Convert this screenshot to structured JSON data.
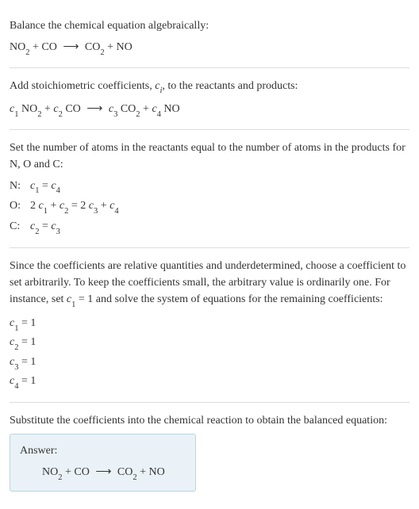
{
  "section1": {
    "title": "Balance the chemical equation algebraically:",
    "eq_r1": "NO",
    "eq_r1_sub": "2",
    "eq_plus1": " + ",
    "eq_r2": "CO",
    "eq_arrow": "⟶",
    "eq_p1": "CO",
    "eq_p1_sub": "2",
    "eq_plus2": " + ",
    "eq_p2": "NO"
  },
  "section2": {
    "title_a": "Add stoichiometric coefficients, ",
    "title_ci": "c",
    "title_ci_sub": "i",
    "title_b": ", to the reactants and products:",
    "c1": "c",
    "c1_sub": "1",
    "r1": " NO",
    "r1_sub": "2",
    "plus1": " + ",
    "c2": "c",
    "c2_sub": "2",
    "r2": " CO",
    "arrow": "⟶",
    "c3": "c",
    "c3_sub": "3",
    "p1": " CO",
    "p1_sub": "2",
    "plus2": " + ",
    "c4": "c",
    "c4_sub": "4",
    "p2": " NO"
  },
  "section3": {
    "title": "Set the number of atoms in the reactants equal to the number of atoms in the products for N, O and C:",
    "rows": [
      {
        "label": "N:",
        "lhs_c": "c",
        "lhs_sub": "1",
        "eq": " = ",
        "rhs_c": "c",
        "rhs_sub": "4"
      },
      {
        "label": "O:",
        "pre1": "2 ",
        "c1": "c",
        "c1_sub": "1",
        "plus1": " + ",
        "c2": "c",
        "c2_sub": "2",
        "eq": " = ",
        "pre2": "2 ",
        "c3": "c",
        "c3_sub": "3",
        "plus2": " + ",
        "c4": "c",
        "c4_sub": "4"
      },
      {
        "label": "C:",
        "lhs_c": "c",
        "lhs_sub": "2",
        "eq": " = ",
        "rhs_c": "c",
        "rhs_sub": "3"
      }
    ]
  },
  "section4": {
    "title_a": "Since the coefficients are relative quantities and underdetermined, choose a coefficient to set arbitrarily. To keep the coefficients small, the arbitrary value is ordinarily one. For instance, set ",
    "set_c": "c",
    "set_sub": "1",
    "set_val": " = 1",
    "title_b": " and solve the system of equations for the remaining coefficients:",
    "coeffs": [
      {
        "c": "c",
        "sub": "1",
        "val": " = 1"
      },
      {
        "c": "c",
        "sub": "2",
        "val": " = 1"
      },
      {
        "c": "c",
        "sub": "3",
        "val": " = 1"
      },
      {
        "c": "c",
        "sub": "4",
        "val": " = 1"
      }
    ]
  },
  "section5": {
    "title": "Substitute the coefficients into the chemical reaction to obtain the balanced equation:",
    "answer_label": "Answer:",
    "eq_r1": "NO",
    "eq_r1_sub": "2",
    "eq_plus1": " + ",
    "eq_r2": "CO",
    "eq_arrow": "⟶",
    "eq_p1": "CO",
    "eq_p1_sub": "2",
    "eq_plus2": " + ",
    "eq_p2": "NO"
  },
  "colors": {
    "text": "#333333",
    "border": "#dddddd",
    "answer_bg": "#eaf2f7",
    "answer_border": "#b8d4e3"
  }
}
